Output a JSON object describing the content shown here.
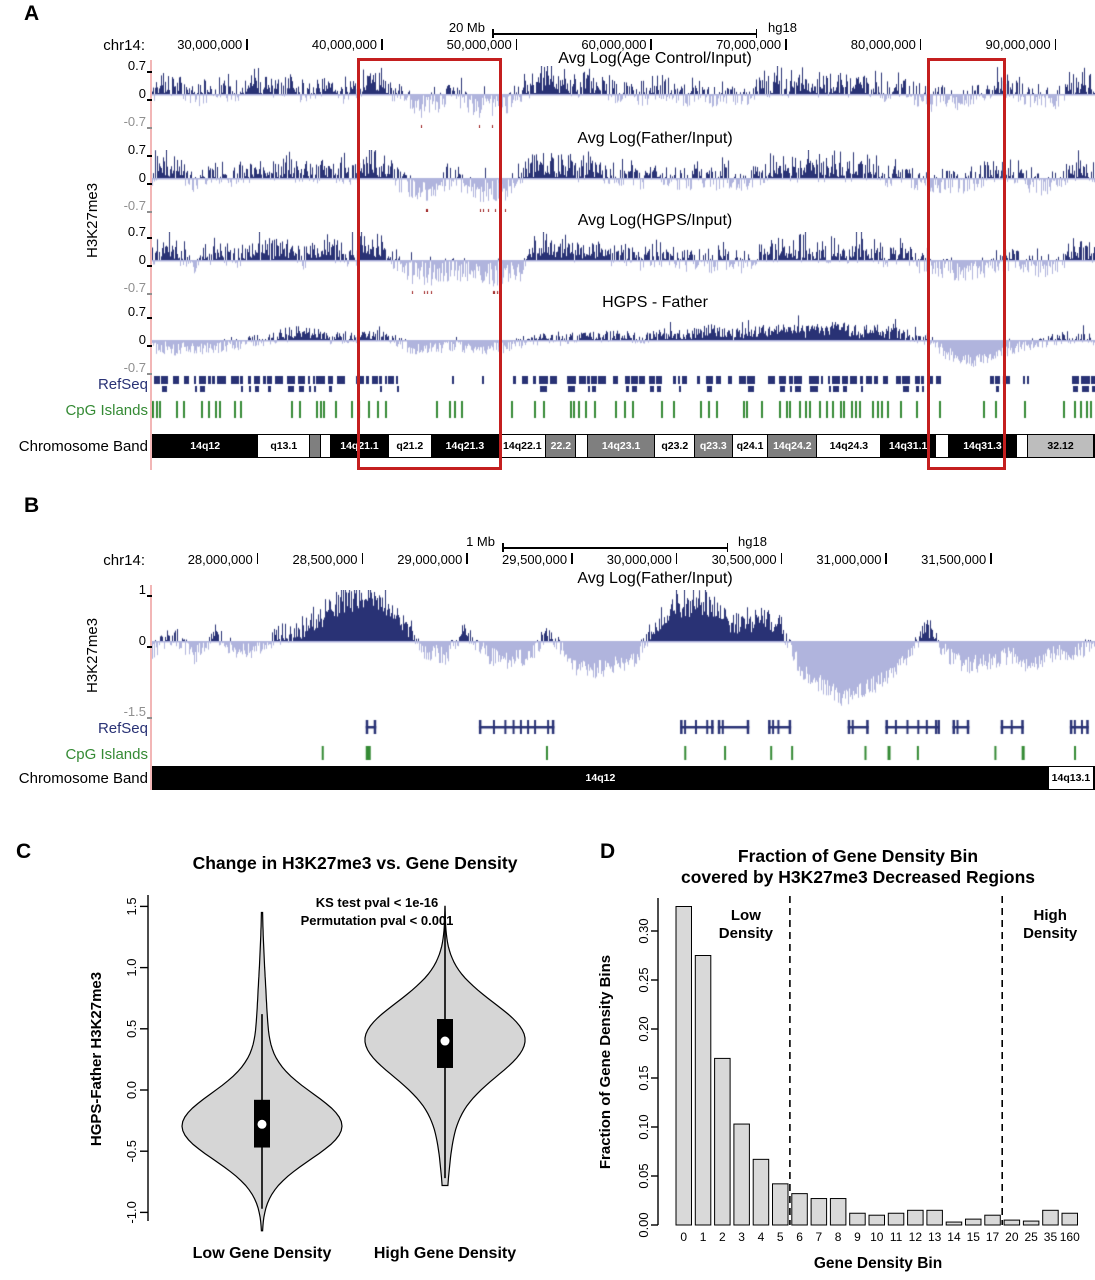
{
  "colors": {
    "navy": "#293275",
    "lavender": "#b0b4dd",
    "green": "#348a34",
    "red_box": "#c41f1f",
    "pink_line": "#f2b6b6",
    "red_mark": "#9c1f1f",
    "band_black": "#000000",
    "band_gray": "#7f7f7f",
    "band_lightgray": "#bdbdbd",
    "violin_fill": "#d6d6d6",
    "bar_fill": "#d9d9d9"
  },
  "panel_a": {
    "label": "A",
    "scale": {
      "length_label": "20 Mb",
      "genome": "hg18"
    },
    "chrom_label": "chr14:",
    "axis_label": "H3K27me3",
    "span": {
      "start_mb": 23,
      "end_mb": 93
    },
    "ticks": [
      {
        "label": "30,000,000",
        "mb": 30
      },
      {
        "label": "40,000,000",
        "mb": 40
      },
      {
        "label": "50,000,000",
        "mb": 50
      },
      {
        "label": "60,000,000",
        "mb": 60
      },
      {
        "label": "70,000,000",
        "mb": 70
      },
      {
        "label": "80,000,000",
        "mb": 80
      },
      {
        "label": "90,000,000",
        "mb": 90
      }
    ],
    "tracks": [
      {
        "title": "Avg Log(Age Control/Input)",
        "ymax": "0.7",
        "yzero": "0",
        "ymin": "-0.7",
        "seed": 11,
        "mode": "density",
        "profile": "control_density",
        "marks": true
      },
      {
        "title": "Avg Log(Father/Input)",
        "ymax": "0.7",
        "yzero": "0",
        "ymin": "-0.7",
        "seed": 23,
        "mode": "density",
        "profile": "control_density",
        "marks": true
      },
      {
        "title": "Avg Log(HGPS/Input)",
        "ymax": "0.7",
        "yzero": "0",
        "ymin": "-0.7",
        "seed": 37,
        "mode": "density",
        "profile": "hgps_density",
        "marks": true
      },
      {
        "title": "HGPS - Father",
        "ymax": "0.7",
        "yzero": "0",
        "ymin": "-0.7",
        "seed": 41,
        "mode": "direct",
        "profile": "diff_signal",
        "marks": false
      }
    ],
    "refseq_label": "RefSeq",
    "cpg_label": "CpG Islands",
    "band_label": "Chromosome Band",
    "bands": [
      {
        "label": "14q12",
        "color": "black",
        "frac": 0.112
      },
      {
        "label": "q13.1",
        "color": "white",
        "frac": 0.055
      },
      {
        "label": "",
        "color": "gray",
        "frac": 0.012
      },
      {
        "label": "",
        "color": "white",
        "frac": 0.01
      },
      {
        "label": "14q21.1",
        "color": "black",
        "frac": 0.062
      },
      {
        "label": "q21.2",
        "color": "white",
        "frac": 0.045
      },
      {
        "label": "14q21.3",
        "color": "black",
        "frac": 0.072
      },
      {
        "label": "14q22.1",
        "color": "white",
        "frac": 0.05
      },
      {
        "label": "22.2",
        "color": "gray",
        "frac": 0.032
      },
      {
        "label": "",
        "color": "white",
        "frac": 0.012
      },
      {
        "label": "14q23.1",
        "color": "gray",
        "frac": 0.072
      },
      {
        "label": "q23.2",
        "color": "white",
        "frac": 0.042
      },
      {
        "label": "q23.3",
        "color": "gray",
        "frac": 0.04
      },
      {
        "label": "q24.1",
        "color": "white",
        "frac": 0.038
      },
      {
        "label": "14q24.2",
        "color": "gray",
        "frac": 0.052
      },
      {
        "label": "14q24.3",
        "color": "white",
        "frac": 0.068
      },
      {
        "label": "14q31.1",
        "color": "black",
        "frac": 0.058
      },
      {
        "label": "",
        "color": "white",
        "frac": 0.014
      },
      {
        "label": "14q31.3",
        "color": "black",
        "frac": 0.072
      },
      {
        "label": "",
        "color": "white",
        "frac": 0.012
      },
      {
        "label": "32.12",
        "color": "lightgray",
        "frac": 0.07
      }
    ],
    "highlight_regions_mb": [
      [
        38.2,
        49.0
      ],
      [
        80.5,
        86.4
      ]
    ]
  },
  "panel_b": {
    "label": "B",
    "scale": {
      "length_label": "1 Mb",
      "genome": "hg18"
    },
    "chrom_label": "chr14:",
    "axis_label": "H3K27me3",
    "span": {
      "start_mb": 27.5,
      "end_mb": 32.0
    },
    "ticks": [
      {
        "label": "28,000,000",
        "mb": 28
      },
      {
        "label": "28,500,000",
        "mb": 28.5
      },
      {
        "label": "29,000,000",
        "mb": 29
      },
      {
        "label": "29,500,000",
        "mb": 29.5
      },
      {
        "label": "30,000,000",
        "mb": 30
      },
      {
        "label": "30,500,000",
        "mb": 30.5
      },
      {
        "label": "31,000,000",
        "mb": 31
      },
      {
        "label": "31,500,000",
        "mb": 31.5
      }
    ],
    "track": {
      "title": "Avg Log(Father/Input)",
      "ymax": "1",
      "yzero": "0",
      "ymin": "-1.5",
      "seed": 53,
      "mode": "b",
      "profile": "father_zoom"
    },
    "refseq_label": "RefSeq",
    "cpg_label": "CpG Islands",
    "band_label": "Chromosome Band",
    "bands": [
      {
        "label": "14q12",
        "color": "black",
        "frac": 0.952
      },
      {
        "label": "14q13.1",
        "color": "white",
        "frac": 0.048
      }
    ]
  },
  "panel_c": {
    "label": "C"
  },
  "panel_d": {
    "label": "D"
  },
  "chart_data": [
    {
      "id": "panel_a_tracks",
      "type": "area",
      "x_unit": "Mb",
      "x_range": [
        23,
        93
      ],
      "y_range": [
        -0.7,
        0.7
      ],
      "profiles": {
        "control_density": [
          0.5,
          0.7,
          0.6,
          0.4,
          0.5,
          0.6,
          0.5,
          0.6,
          0.7,
          0.6,
          0.7,
          0.5,
          0.6,
          0.7,
          0.5,
          0.6,
          0.8,
          0.7,
          0.4,
          0.2,
          0.15,
          0.3,
          0.5,
          0.3,
          0.15,
          0.15,
          0.2,
          0.5,
          0.7,
          0.8,
          0.7,
          0.6,
          0.7,
          0.6,
          0.5,
          0.6,
          0.4,
          0.6,
          0.5,
          0.4,
          0.5,
          0.4,
          0.5,
          0.4,
          0.5,
          0.6,
          0.7,
          0.6,
          0.7,
          0.6,
          0.7,
          0.6,
          0.7,
          0.6,
          0.5,
          0.6,
          0.4,
          0.3,
          0.4,
          0.3,
          0.4,
          0.5,
          0.7,
          0.6,
          0.4,
          0.3,
          0.3,
          0.6,
          0.7,
          0.6
        ],
        "hgps_density": [
          0.5,
          0.7,
          0.6,
          0.4,
          0.5,
          0.6,
          0.5,
          0.6,
          0.7,
          0.6,
          0.7,
          0.5,
          0.6,
          0.7,
          0.5,
          0.6,
          0.8,
          0.7,
          0.4,
          0.12,
          0.1,
          0.15,
          0.25,
          0.2,
          0.12,
          0.1,
          0.12,
          0.2,
          0.7,
          0.8,
          0.7,
          0.6,
          0.7,
          0.6,
          0.5,
          0.6,
          0.4,
          0.6,
          0.5,
          0.4,
          0.5,
          0.4,
          0.5,
          0.4,
          0.5,
          0.6,
          0.7,
          0.6,
          0.7,
          0.6,
          0.7,
          0.6,
          0.7,
          0.6,
          0.5,
          0.6,
          0.4,
          0.3,
          0.25,
          0.2,
          0.22,
          0.3,
          0.45,
          0.4,
          0.3,
          0.3,
          0.3,
          0.6,
          0.7,
          0.6
        ],
        "diff_signal": [
          -0.3,
          -0.4,
          -0.35,
          -0.3,
          -0.35,
          -0.3,
          -0.2,
          -0.1,
          0,
          0.1,
          0.35,
          0.3,
          0.2,
          0,
          0.1,
          0.1,
          0.2,
          0.1,
          -0.1,
          -0.35,
          -0.4,
          -0.3,
          -0.25,
          -0.3,
          -0.4,
          -0.35,
          -0.3,
          -0.1,
          0,
          0.1,
          0,
          0.1,
          0.15,
          0.1,
          0.2,
          0.1,
          0,
          0.2,
          0.3,
          0.2,
          0.3,
          0.4,
          0.3,
          0.2,
          0.3,
          0.4,
          0.5,
          0.4,
          0.5,
          0.4,
          0.5,
          0.4,
          0.3,
          0.4,
          0.3,
          0.2,
          0.1,
          0,
          -0.5,
          -0.75,
          -0.85,
          -0.75,
          -0.6,
          -0.4,
          -0.2,
          -0.1,
          0,
          0.1,
          0.1,
          0
        ],
        "refseq_density": [
          0.7,
          0.9,
          0.8,
          0.6,
          0.7,
          0.8,
          0.7,
          0.8,
          0.9,
          0.8,
          0.9,
          0.7,
          0.8,
          0.9,
          0.7,
          0.8,
          0.9,
          0.8,
          0.5,
          0.15,
          0.1,
          0.4,
          0.6,
          0.3,
          0.1,
          0.1,
          0.15,
          0.6,
          0.8,
          0.9,
          0.8,
          0.8,
          0.9,
          0.8,
          0.7,
          0.8,
          0.6,
          0.8,
          0.7,
          0.6,
          0.7,
          0.6,
          0.7,
          0.6,
          0.7,
          0.8,
          0.9,
          0.8,
          0.9,
          0.8,
          0.9,
          0.8,
          0.9,
          0.8,
          0.7,
          0.8,
          0.6,
          0.4,
          0.3,
          0.2,
          0.3,
          0.5,
          0.7,
          0.6,
          0.3,
          0.2,
          0.3,
          0.8,
          0.9,
          0.8
        ]
      }
    },
    {
      "id": "panel_b_track",
      "type": "area",
      "x_unit": "Mb",
      "x_range": [
        27.5,
        32
      ],
      "y_range": [
        -1.5,
        1
      ],
      "profile": [
        -0.2,
        0.1,
        -0.3,
        0.15,
        -0.2,
        -0.15,
        0.1,
        0.2,
        0.5,
        0.85,
        0.95,
        0.8,
        0.4,
        -0.2,
        -0.3,
        0.2,
        -0.3,
        -0.4,
        -0.3,
        0.2,
        -0.5,
        -0.6,
        -0.5,
        -0.4,
        0.3,
        0.7,
        0.8,
        0.6,
        0.3,
        0.5,
        0.3,
        -0.6,
        -0.9,
        -1.2,
        -1.0,
        -0.8,
        -0.4,
        0.3,
        -0.3,
        -0.5,
        -0.4,
        -0.3,
        -0.5,
        -0.3,
        -0.2,
        -0.1
      ],
      "refseq_segments": [
        [
          28.52,
          28.57
        ],
        [
          29.06,
          29.42
        ],
        [
          30.02,
          30.18
        ],
        [
          30.2,
          30.35
        ],
        [
          30.44,
          30.55
        ],
        [
          30.82,
          30.92
        ],
        [
          31.0,
          31.26
        ],
        [
          31.32,
          31.4
        ],
        [
          31.55,
          31.66
        ],
        [
          31.88,
          31.97
        ]
      ],
      "cpg_sites": [
        [
          28.31,
          2
        ],
        [
          28.52,
          5
        ],
        [
          29.38,
          2
        ],
        [
          30.04,
          2
        ],
        [
          30.23,
          2
        ],
        [
          30.45,
          2
        ],
        [
          30.55,
          2
        ],
        [
          30.9,
          2
        ],
        [
          31.01,
          3
        ],
        [
          31.15,
          2
        ],
        [
          31.52,
          2
        ],
        [
          31.65,
          3
        ],
        [
          31.9,
          2
        ]
      ]
    },
    {
      "id": "violin",
      "type": "violin",
      "title": "Change in H3K27me3 vs. Gene Density",
      "ylabel": "HGPS-Father H3K27me3",
      "ylim": [
        -1.25,
        1.6
      ],
      "yticks": [
        "1.5",
        "1.0",
        "0.5",
        "0.0",
        "-0.5",
        "-1.0"
      ],
      "ytick_values": [
        1.5,
        1.0,
        0.5,
        0.0,
        -0.5,
        -1.0
      ],
      "annotations": [
        "KS test pval < 1e-16",
        "Permutation pval < 0.001"
      ],
      "groups": [
        {
          "label": "Low Gene Density",
          "median": -0.28,
          "q1": -0.47,
          "q3": -0.08,
          "whisker_low": -0.97,
          "whisker_high": 0.62,
          "range": [
            -1.15,
            1.45
          ],
          "mix": [
            {
              "mu": -0.3,
              "sd": 0.27,
              "w": 1
            },
            {
              "mu": 0.4,
              "sd": 0.5,
              "w": 0.07
            }
          ]
        },
        {
          "label": "High Gene Density",
          "median": 0.4,
          "q1": 0.18,
          "q3": 0.58,
          "whisker_low": -0.72,
          "whisker_high": 1.42,
          "range": [
            -0.78,
            1.5
          ],
          "mix": [
            {
              "mu": 0.42,
              "sd": 0.3,
              "w": 1
            },
            {
              "mu": -0.15,
              "sd": 0.45,
              "w": 0.1
            }
          ]
        }
      ]
    },
    {
      "id": "bars",
      "type": "bar",
      "title_line1": "Fraction of Gene Density Bin",
      "title_line2": "covered by H3K27me3 Decreased Regions",
      "xlabel": "Gene Density Bin",
      "ylabel": "Fraction of Gene Density Bins",
      "ylim": [
        0,
        0.33
      ],
      "yticks": [
        "0.00",
        "0.05",
        "0.10",
        "0.15",
        "0.20",
        "0.25",
        "0.30"
      ],
      "ytick_values": [
        0,
        0.05,
        0.1,
        0.15,
        0.2,
        0.25,
        0.3
      ],
      "categories": [
        "0",
        "1",
        "2",
        "3",
        "4",
        "5",
        "6",
        "7",
        "8",
        "9",
        "10",
        "11",
        "12",
        "13",
        "14",
        "15",
        "17",
        "20",
        "25",
        "35",
        "160"
      ],
      "values": [
        0.325,
        0.275,
        0.17,
        0.103,
        0.067,
        0.042,
        0.032,
        0.027,
        0.027,
        0.012,
        0.01,
        0.012,
        0.015,
        0.015,
        0.003,
        0.006,
        0.01,
        0.005,
        0.004,
        0.015,
        0.012
      ],
      "dividers": [
        {
          "after_index": 5,
          "label_line1": "Low",
          "label_line2": "Density",
          "side": "left"
        },
        {
          "after_index": 16,
          "label_line1": "High",
          "label_line2": "Density",
          "side": "right"
        }
      ]
    }
  ]
}
